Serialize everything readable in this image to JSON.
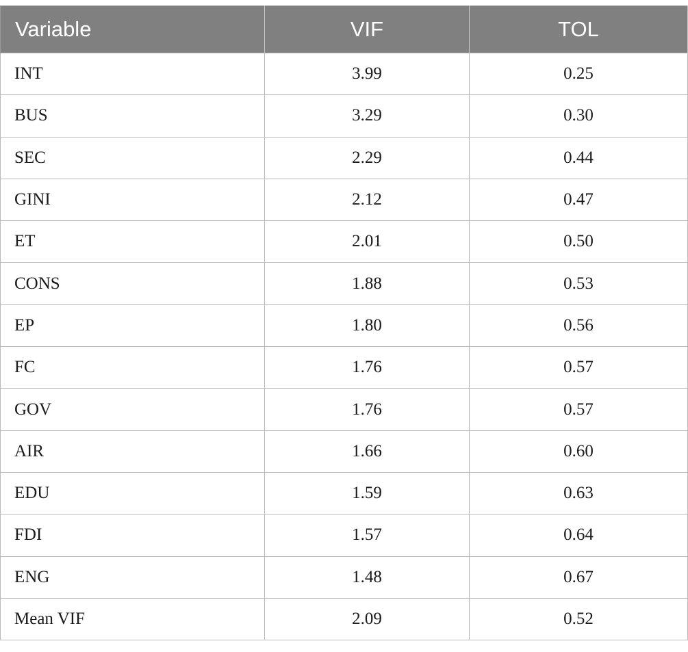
{
  "table": {
    "headers": [
      "Variable",
      "VIF",
      "TOL"
    ],
    "rows": [
      [
        "INT",
        "3.99",
        "0.25"
      ],
      [
        "BUS",
        "3.29",
        "0.30"
      ],
      [
        "SEC",
        "2.29",
        "0.44"
      ],
      [
        "GINI",
        "2.12",
        "0.47"
      ],
      [
        "ET",
        "2.01",
        "0.50"
      ],
      [
        "CONS",
        "1.88",
        "0.53"
      ],
      [
        "EP",
        "1.80",
        "0.56"
      ],
      [
        "FC",
        "1.76",
        "0.57"
      ],
      [
        "GOV",
        "1.76",
        "0.57"
      ],
      [
        "AIR",
        "1.66",
        "0.60"
      ],
      [
        "EDU",
        "1.59",
        "0.63"
      ],
      [
        "FDI",
        "1.57",
        "0.64"
      ],
      [
        "ENG",
        "1.48",
        "0.67"
      ],
      [
        "Mean VIF",
        "2.09",
        "0.52"
      ]
    ]
  },
  "colors": {
    "header_background": "#808080",
    "header_text": "#ffffff",
    "grid_lines": "#b9b9b9"
  }
}
